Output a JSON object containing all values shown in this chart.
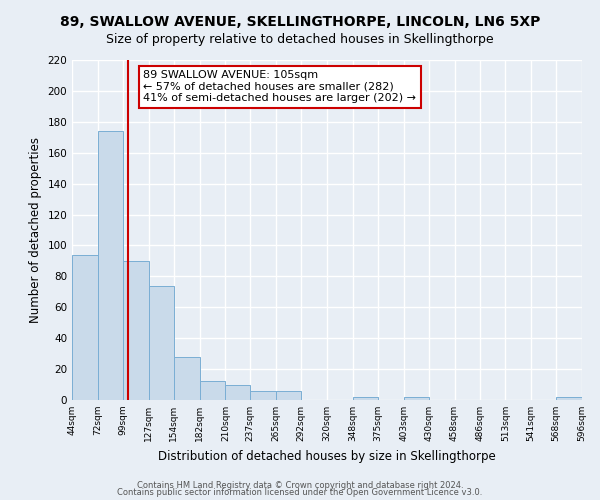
{
  "title": "89, SWALLOW AVENUE, SKELLINGTHORPE, LINCOLN, LN6 5XP",
  "subtitle": "Size of property relative to detached houses in Skellingthorpe",
  "xlabel": "Distribution of detached houses by size in Skellingthorpe",
  "ylabel": "Number of detached properties",
  "bar_edges": [
    44,
    72,
    99,
    127,
    154,
    182,
    210,
    237,
    265,
    292,
    320,
    348,
    375,
    403,
    430,
    458,
    486,
    513,
    541,
    568,
    596
  ],
  "bar_heights": [
    94,
    174,
    90,
    74,
    28,
    12,
    10,
    6,
    6,
    0,
    0,
    2,
    0,
    2,
    0,
    0,
    0,
    0,
    0,
    2
  ],
  "bar_color": "#c9daea",
  "bar_edgecolor": "#7aaed4",
  "vline_x": 105,
  "vline_color": "#cc0000",
  "annotation_title": "89 SWALLOW AVENUE: 105sqm",
  "annotation_line1": "← 57% of detached houses are smaller (282)",
  "annotation_line2": "41% of semi-detached houses are larger (202) →",
  "annotation_box_color": "#cc0000",
  "ylim": [
    0,
    220
  ],
  "yticks": [
    0,
    20,
    40,
    60,
    80,
    100,
    120,
    140,
    160,
    180,
    200,
    220
  ],
  "tick_labels": [
    "44sqm",
    "72sqm",
    "99sqm",
    "127sqm",
    "154sqm",
    "182sqm",
    "210sqm",
    "237sqm",
    "265sqm",
    "292sqm",
    "320sqm",
    "348sqm",
    "375sqm",
    "403sqm",
    "430sqm",
    "458sqm",
    "486sqm",
    "513sqm",
    "541sqm",
    "568sqm",
    "596sqm"
  ],
  "footer1": "Contains HM Land Registry data © Crown copyright and database right 2024.",
  "footer2": "Contains public sector information licensed under the Open Government Licence v3.0.",
  "background_color": "#e8eef5",
  "grid_color": "#ffffff",
  "title_fontsize": 10,
  "subtitle_fontsize": 9,
  "annotation_fontsize": 8
}
